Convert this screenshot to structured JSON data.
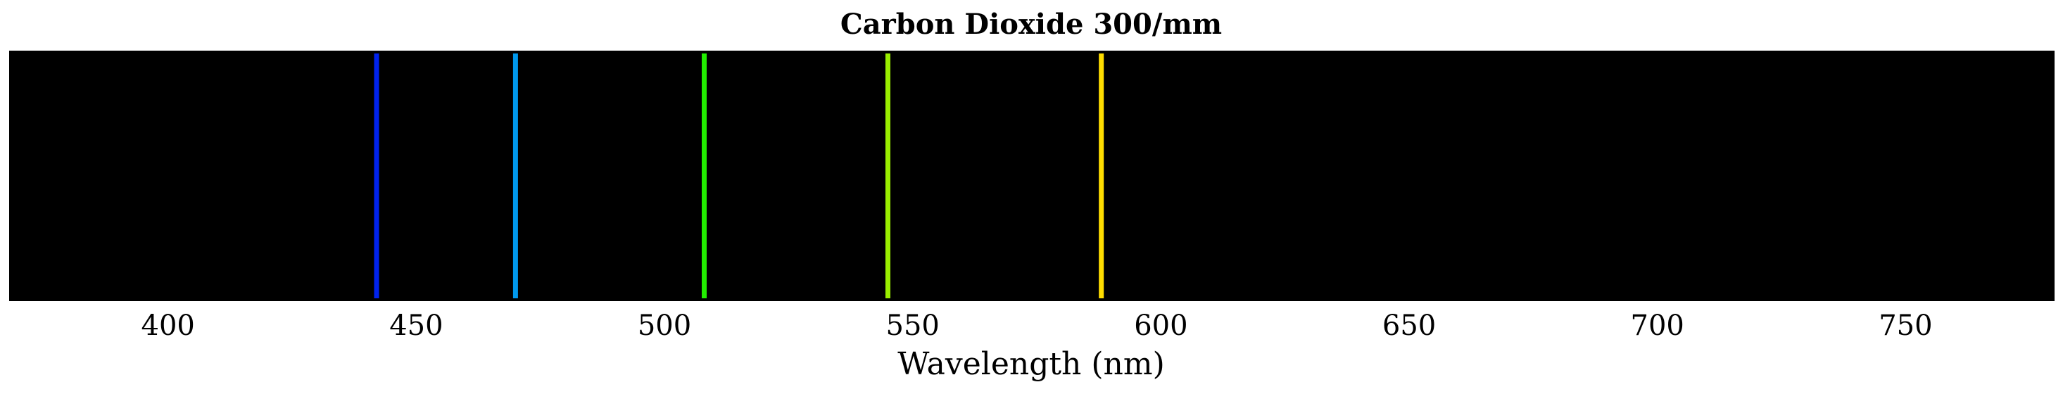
{
  "chart_data": {
    "type": "spectrum",
    "title": "Carbon Dioxide 300/mm",
    "xlabel": "Wavelength (nm)",
    "ylabel": "",
    "xlim": [
      368,
      780
    ],
    "background": "#000000",
    "xticks": [
      400,
      450,
      500,
      550,
      600,
      650,
      700,
      750
    ],
    "xtick_labels": [
      "400",
      "450",
      "500",
      "550",
      "600",
      "650",
      "700",
      "750"
    ],
    "lines": [
      {
        "wavelength": 442,
        "color": "#0022ee"
      },
      {
        "wavelength": 470,
        "color": "#0099ee"
      },
      {
        "wavelength": 508,
        "color": "#22ee00"
      },
      {
        "wavelength": 545,
        "color": "#99ee00"
      },
      {
        "wavelength": 588,
        "color": "#ffdd00"
      }
    ],
    "grid": false,
    "legend": "none"
  }
}
